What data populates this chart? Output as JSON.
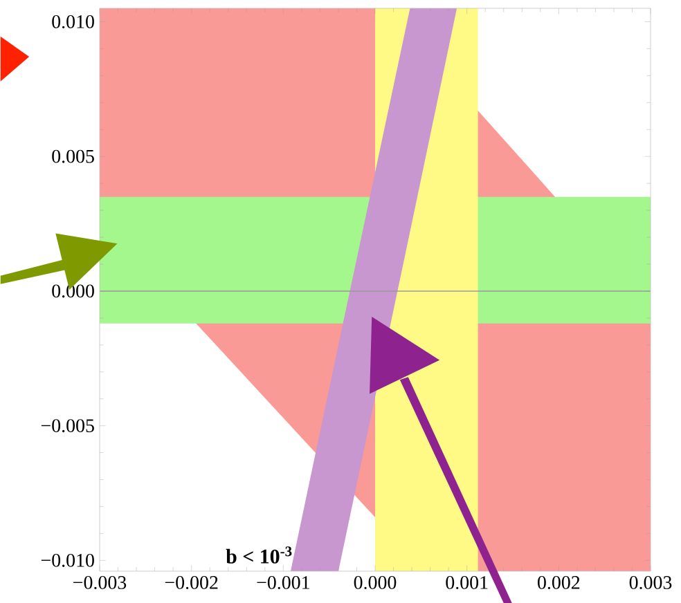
{
  "chart_data": {
    "type": "line",
    "xlim": [
      -0.003,
      0.003
    ],
    "ylim": [
      -0.0104,
      0.0105
    ],
    "xticks": [
      {
        "value": -0.003,
        "label": "−0.003"
      },
      {
        "value": -0.002,
        "label": "−0.002"
      },
      {
        "value": -0.001,
        "label": "−0.001"
      },
      {
        "value": 0,
        "label": "0.000"
      },
      {
        "value": 0.001,
        "label": "0.001"
      },
      {
        "value": 0.002,
        "label": "0.002"
      },
      {
        "value": 0.003,
        "label": "0.003"
      }
    ],
    "yticks": [
      {
        "value": -0.01,
        "label": "−0.010"
      },
      {
        "value": -0.005,
        "label": "−0.005"
      },
      {
        "value": 0,
        "label": "0.000"
      },
      {
        "value": 0.005,
        "label": "0.005"
      },
      {
        "value": 0.01,
        "label": "0.010"
      }
    ],
    "series": [
      {
        "color": "#fa9a96",
        "x": [
          -0.003,
          -0.00195,
          0,
          0.00112,
          0.00196,
          0.003
        ],
        "lower": [
          0.0027,
          -0.0012,
          -0.0084,
          -0.0104,
          -0.0104,
          -0.0104
        ],
        "upper": [
          0.0105,
          0.0105,
          0.0105,
          0.0067,
          0.0035,
          -0.0004
        ],
        "values": [
          null,
          null,
          null,
          null,
          null,
          null
        ]
      },
      {
        "color": "#c997cf",
        "x": [
          -0.00092,
          -0.0004,
          0.00038,
          0.00089
        ],
        "lower": [
          -0.0104,
          -0.0104,
          0.0022,
          0.0105
        ],
        "upper": [
          -0.0104,
          -0.002,
          0.0105,
          0.0105
        ],
        "values": [
          null,
          null,
          null,
          null
        ]
      }
    ],
    "bands": [
      {
        "axis": "y",
        "from": -0.0012,
        "to": 0.0035,
        "color": "#a3f78c"
      },
      {
        "axis": "x",
        "from": 0,
        "to": 0.00112,
        "color": "#fffa85"
      }
    ],
    "ref_lines": [
      {
        "axis": "y",
        "value": 0,
        "color": "#9a9a9a"
      }
    ],
    "annotations": [
      "b <  10$^{-3}$"
    ]
  }
}
